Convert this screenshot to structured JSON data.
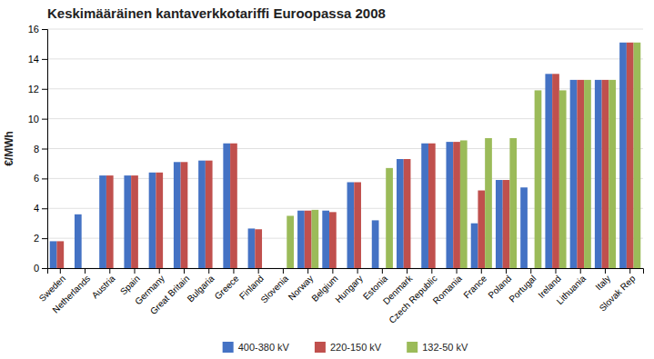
{
  "chart_data": {
    "type": "bar",
    "title": "Keskimääräinen kantaverkkotariffi Euroopassa 2008",
    "ylabel": "€/MWh",
    "categories": [
      "Sweden",
      "Netherlands",
      "Austria",
      "Spain",
      "Germany",
      "Great Britain",
      "Bulgaria",
      "Greece",
      "Finland",
      "Slovenia",
      "Norway",
      "Belgium",
      "Hungary",
      "Estonia",
      "Denmark",
      "Czech Republic",
      "Romania",
      "France",
      "Poland",
      "Portugal",
      "Ireland",
      "Lithuania",
      "Italy",
      "Slovak Rep"
    ],
    "series": [
      {
        "name": "400-380 kV",
        "color": "#4472C4",
        "values": [
          1.8,
          3.6,
          6.2,
          6.2,
          6.4,
          7.1,
          7.2,
          8.35,
          2.65,
          null,
          3.85,
          3.85,
          5.75,
          3.2,
          7.3,
          8.35,
          8.45,
          3.0,
          5.9,
          5.4,
          13.0,
          12.6,
          12.6,
          15.1
        ]
      },
      {
        "name": "220-150 kV",
        "color": "#C0504D",
        "values": [
          1.8,
          null,
          6.2,
          6.2,
          6.4,
          7.1,
          7.2,
          8.35,
          2.6,
          null,
          3.85,
          3.75,
          5.75,
          null,
          7.3,
          8.35,
          8.45,
          5.2,
          5.9,
          null,
          13.0,
          12.6,
          12.6,
          15.1
        ]
      },
      {
        "name": "132-50 kV",
        "color": "#9BBB59",
        "values": [
          null,
          null,
          null,
          null,
          null,
          null,
          null,
          null,
          null,
          3.5,
          3.9,
          null,
          null,
          6.7,
          null,
          null,
          8.55,
          8.7,
          8.7,
          11.9,
          11.9,
          12.6,
          12.6,
          15.1
        ]
      }
    ],
    "ylim": [
      0,
      16
    ],
    "yticks": [
      0,
      2,
      4,
      6,
      8,
      10,
      12,
      14,
      16
    ],
    "grid": true,
    "legend": "bottom"
  }
}
